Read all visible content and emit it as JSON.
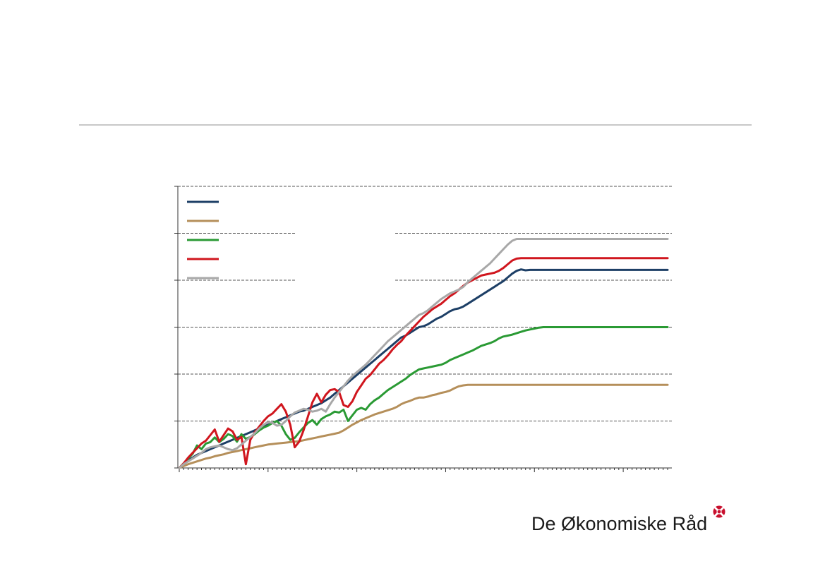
{
  "chart_data": {
    "type": "line",
    "title": "",
    "xlabel": "",
    "ylabel": "",
    "ylim": [
      0,
      6
    ],
    "grid": "horizontal dashed",
    "legend_placement": "top-left",
    "x": [
      0,
      0.5,
      1,
      1.5,
      2,
      2.5,
      3,
      3.5,
      4,
      4.5,
      5,
      5.5,
      6,
      6.5,
      7,
      7.5,
      8,
      8.5,
      9,
      9.5,
      10,
      10.5,
      11,
      11.5,
      12,
      12.5,
      13,
      13.5,
      14,
      14.5,
      15,
      15.5,
      16,
      16.5,
      17,
      17.5,
      18,
      18.5,
      19,
      19.5,
      20,
      20.5,
      21,
      21.5,
      22,
      22.5,
      23,
      23.5,
      24,
      24.5,
      25,
      25.5,
      26,
      26.5,
      27,
      27.5,
      28,
      28.5,
      29,
      29.5,
      30,
      30.5,
      31,
      31.5,
      32,
      32.5,
      33,
      33.5,
      34,
      34.5,
      35,
      35.5,
      36,
      36.5,
      37,
      37.5,
      38,
      38.5,
      39,
      39.5,
      40,
      40.5,
      41,
      41.5,
      42,
      42.5,
      43,
      43.5,
      44,
      44.5,
      45,
      45.5,
      46,
      46.5,
      47,
      47.5,
      48,
      48.5,
      49,
      49.5,
      50,
      50.5,
      51,
      51.5,
      52,
      52.5,
      53,
      53.5,
      54,
      54.5,
      55
    ],
    "series": [
      {
        "color": "#1d3f66",
        "values": [
          0,
          0.08,
          0.16,
          0.22,
          0.28,
          0.32,
          0.36,
          0.4,
          0.44,
          0.48,
          0.52,
          0.56,
          0.6,
          0.64,
          0.68,
          0.72,
          0.76,
          0.8,
          0.84,
          0.88,
          0.92,
          0.96,
          1.0,
          1.04,
          1.08,
          1.12,
          1.16,
          1.2,
          1.22,
          1.26,
          1.3,
          1.34,
          1.38,
          1.44,
          1.5,
          1.58,
          1.66,
          1.74,
          1.82,
          1.9,
          1.98,
          2.06,
          2.14,
          2.22,
          2.3,
          2.38,
          2.46,
          2.54,
          2.62,
          2.7,
          2.78,
          2.82,
          2.88,
          2.94,
          3.0,
          3.02,
          3.06,
          3.12,
          3.18,
          3.22,
          3.28,
          3.34,
          3.38,
          3.4,
          3.44,
          3.5,
          3.56,
          3.62,
          3.68,
          3.74,
          3.8,
          3.86,
          3.92,
          3.98,
          4.06,
          4.14,
          4.2,
          4.23,
          4.21,
          4.22,
          4.22,
          4.22,
          4.22,
          4.22,
          4.22,
          4.22,
          4.22,
          4.22,
          4.22,
          4.22,
          4.22,
          4.22,
          4.22,
          4.22,
          4.22,
          4.22,
          4.22,
          4.22,
          4.22,
          4.22,
          4.22,
          4.22,
          4.22,
          4.22,
          4.22,
          4.22,
          4.22,
          4.22,
          4.22,
          4.22,
          4.22
        ]
      },
      {
        "color": "#b58f5a",
        "values": [
          0,
          0.04,
          0.08,
          0.11,
          0.14,
          0.17,
          0.2,
          0.22,
          0.25,
          0.27,
          0.29,
          0.32,
          0.34,
          0.36,
          0.38,
          0.4,
          0.42,
          0.44,
          0.46,
          0.48,
          0.5,
          0.51,
          0.52,
          0.53,
          0.54,
          0.55,
          0.56,
          0.57,
          0.59,
          0.61,
          0.63,
          0.65,
          0.67,
          0.69,
          0.71,
          0.73,
          0.75,
          0.8,
          0.86,
          0.92,
          0.97,
          1.02,
          1.06,
          1.1,
          1.14,
          1.17,
          1.2,
          1.23,
          1.26,
          1.3,
          1.36,
          1.4,
          1.43,
          1.47,
          1.5,
          1.5,
          1.52,
          1.55,
          1.57,
          1.6,
          1.62,
          1.65,
          1.7,
          1.74,
          1.76,
          1.77,
          1.77,
          1.77,
          1.77,
          1.77,
          1.77,
          1.77,
          1.77,
          1.77,
          1.77,
          1.77,
          1.77,
          1.77,
          1.77,
          1.77,
          1.77,
          1.77,
          1.77,
          1.77,
          1.77,
          1.77,
          1.77,
          1.77,
          1.77,
          1.77,
          1.77,
          1.77,
          1.77,
          1.77,
          1.77,
          1.77,
          1.77,
          1.77,
          1.77,
          1.77,
          1.77,
          1.77,
          1.77,
          1.77,
          1.77,
          1.77,
          1.77,
          1.77,
          1.77,
          1.77,
          1.77
        ]
      },
      {
        "color": "#2a9a34",
        "values": [
          0,
          0.1,
          0.2,
          0.3,
          0.48,
          0.4,
          0.52,
          0.55,
          0.65,
          0.55,
          0.62,
          0.72,
          0.68,
          0.56,
          0.72,
          0.62,
          0.66,
          0.72,
          0.8,
          0.86,
          0.9,
          0.96,
          1.0,
          0.9,
          0.72,
          0.6,
          0.64,
          0.76,
          0.86,
          0.96,
          1.02,
          0.92,
          1.04,
          1.1,
          1.14,
          1.2,
          1.18,
          1.24,
          1.0,
          1.12,
          1.24,
          1.28,
          1.24,
          1.36,
          1.44,
          1.5,
          1.58,
          1.66,
          1.72,
          1.78,
          1.84,
          1.9,
          1.98,
          2.04,
          2.1,
          2.12,
          2.14,
          2.16,
          2.18,
          2.2,
          2.24,
          2.3,
          2.34,
          2.38,
          2.42,
          2.46,
          2.5,
          2.55,
          2.6,
          2.63,
          2.66,
          2.7,
          2.76,
          2.8,
          2.82,
          2.84,
          2.87,
          2.9,
          2.93,
          2.95,
          2.97,
          2.99,
          3.0,
          3.0,
          3.0,
          3.0,
          3.0,
          3.0,
          3.0,
          3.0,
          3.0,
          3.0,
          3.0,
          3.0,
          3.0,
          3.0,
          3.0,
          3.0,
          3.0,
          3.0,
          3.0,
          3.0,
          3.0,
          3.0,
          3.0,
          3.0,
          3.0,
          3.0,
          3.0,
          3.0,
          3.0
        ]
      },
      {
        "color": "#d0161e",
        "values": [
          0,
          0.1,
          0.22,
          0.32,
          0.42,
          0.52,
          0.58,
          0.7,
          0.82,
          0.56,
          0.7,
          0.84,
          0.78,
          0.6,
          0.66,
          0.08,
          0.6,
          0.76,
          0.88,
          1.0,
          1.1,
          1.16,
          1.26,
          1.36,
          1.2,
          0.92,
          0.44,
          0.56,
          0.8,
          1.1,
          1.4,
          1.58,
          1.4,
          1.56,
          1.66,
          1.68,
          1.62,
          1.34,
          1.3,
          1.42,
          1.62,
          1.76,
          1.9,
          1.98,
          2.1,
          2.22,
          2.3,
          2.4,
          2.52,
          2.62,
          2.7,
          2.82,
          2.92,
          3.02,
          3.12,
          3.22,
          3.3,
          3.38,
          3.44,
          3.5,
          3.58,
          3.66,
          3.72,
          3.8,
          3.88,
          3.95,
          4.0,
          4.05,
          4.1,
          4.12,
          4.14,
          4.16,
          4.2,
          4.26,
          4.34,
          4.42,
          4.46,
          4.47,
          4.47,
          4.47,
          4.47,
          4.47,
          4.47,
          4.47,
          4.47,
          4.47,
          4.47,
          4.47,
          4.47,
          4.47,
          4.47,
          4.47,
          4.47,
          4.47,
          4.47,
          4.47,
          4.47,
          4.47,
          4.47,
          4.47,
          4.47,
          4.47,
          4.47,
          4.47,
          4.47,
          4.47,
          4.47,
          4.47,
          4.47,
          4.47,
          4.47
        ]
      },
      {
        "color": "#a8a8a8",
        "values": [
          0,
          0.08,
          0.14,
          0.2,
          0.26,
          0.32,
          0.4,
          0.44,
          0.46,
          0.48,
          0.44,
          0.4,
          0.38,
          0.42,
          0.5,
          0.58,
          0.66,
          0.74,
          0.84,
          0.92,
          0.98,
          0.96,
          0.9,
          0.92,
          1.0,
          1.1,
          1.18,
          1.22,
          1.26,
          1.24,
          1.2,
          1.22,
          1.26,
          1.2,
          1.36,
          1.5,
          1.62,
          1.74,
          1.86,
          1.96,
          2.04,
          2.12,
          2.2,
          2.3,
          2.4,
          2.5,
          2.6,
          2.7,
          2.78,
          2.86,
          2.94,
          3.02,
          3.1,
          3.18,
          3.26,
          3.3,
          3.36,
          3.44,
          3.52,
          3.6,
          3.66,
          3.72,
          3.76,
          3.8,
          3.86,
          3.96,
          4.04,
          4.12,
          4.2,
          4.28,
          4.36,
          4.46,
          4.56,
          4.66,
          4.76,
          4.84,
          4.88,
          4.88,
          4.88,
          4.88,
          4.88,
          4.88,
          4.88,
          4.88,
          4.88,
          4.88,
          4.88,
          4.88,
          4.88,
          4.88,
          4.88,
          4.88,
          4.88,
          4.88,
          4.88,
          4.88,
          4.88,
          4.88,
          4.88,
          4.88,
          4.88,
          4.88,
          4.88,
          4.88,
          4.88,
          4.88,
          4.88,
          4.88,
          4.88,
          4.88,
          4.88
        ]
      }
    ]
  },
  "brand": {
    "name": "De Økonomiske Råd"
  },
  "colors": {
    "rule": "#c8c8c8",
    "grid": "#555555",
    "axis": "#333333"
  }
}
